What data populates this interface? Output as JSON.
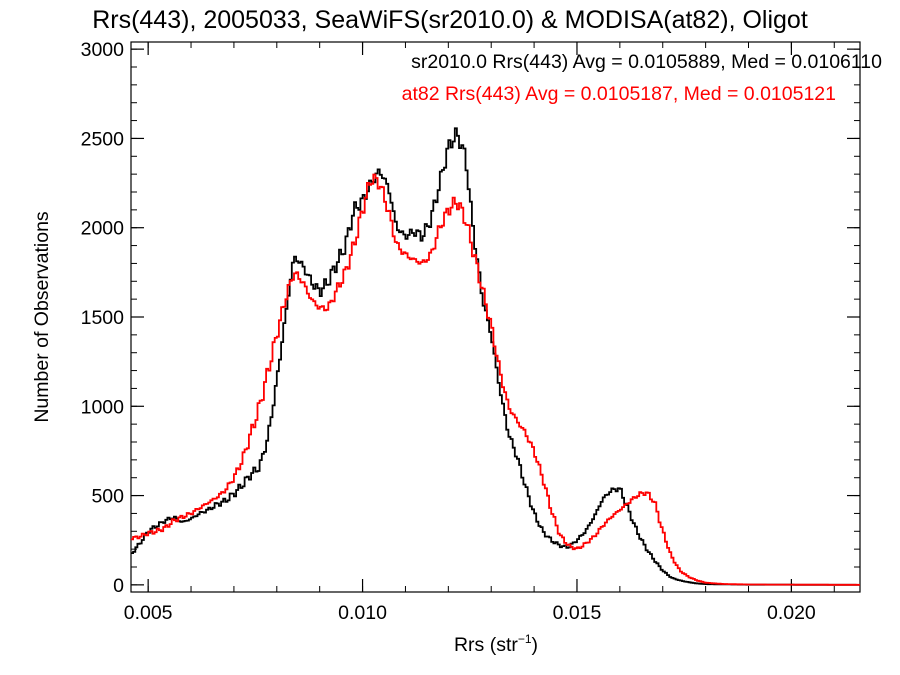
{
  "chart_data": {
    "type": "line",
    "title": "Rrs(443), 2005033, SeaWiFS(sr2010.0) & MODISA(at82), Oligot",
    "xlabel_main": "Rrs (str",
    "xlabel_sup": "−1",
    "xlabel_close": ")",
    "ylabel": "Number of Observations",
    "xlim": [
      0.0046,
      0.0216
    ],
    "ylim": [
      -40,
      3040
    ],
    "x_ticks": [
      0.005,
      0.01,
      0.015,
      0.02
    ],
    "x_tick_labels": [
      "0.005",
      "0.010",
      "0.015",
      "0.020"
    ],
    "y_ticks": [
      0,
      500,
      1000,
      1500,
      2000,
      2500,
      3000
    ],
    "y_tick_labels": [
      "0",
      "500",
      "1000",
      "1500",
      "2000",
      "2500",
      "3000"
    ],
    "x_minor_step": 0.001,
    "y_minor_step": 100,
    "grid": false,
    "legend_position": "top-right",
    "series": [
      {
        "label": "sr2010.0 Rrs(443) Avg = 0.0105889, Med = 0.0106110",
        "color": "#000000",
        "points": [
          [
            0.0046,
            170
          ],
          [
            0.0048,
            230
          ],
          [
            0.005,
            300
          ],
          [
            0.0052,
            330
          ],
          [
            0.0054,
            360
          ],
          [
            0.0056,
            380
          ],
          [
            0.0058,
            350
          ],
          [
            0.006,
            370
          ],
          [
            0.0062,
            400
          ],
          [
            0.0064,
            420
          ],
          [
            0.0066,
            450
          ],
          [
            0.0068,
            470
          ],
          [
            0.007,
            510
          ],
          [
            0.0072,
            560
          ],
          [
            0.0074,
            620
          ],
          [
            0.0076,
            660
          ],
          [
            0.0078,
            830
          ],
          [
            0.008,
            1140
          ],
          [
            0.0082,
            1500
          ],
          [
            0.0084,
            1840
          ],
          [
            0.0086,
            1790
          ],
          [
            0.0088,
            1700
          ],
          [
            0.009,
            1640
          ],
          [
            0.0092,
            1700
          ],
          [
            0.0094,
            1800
          ],
          [
            0.0096,
            1900
          ],
          [
            0.0098,
            2100
          ],
          [
            0.01,
            2150
          ],
          [
            0.0102,
            2250
          ],
          [
            0.0104,
            2320
          ],
          [
            0.0106,
            2230
          ],
          [
            0.0108,
            2000
          ],
          [
            0.011,
            1950
          ],
          [
            0.0112,
            1980
          ],
          [
            0.0114,
            1950
          ],
          [
            0.0116,
            2050
          ],
          [
            0.0118,
            2250
          ],
          [
            0.012,
            2450
          ],
          [
            0.0122,
            2530
          ],
          [
            0.0124,
            2400
          ],
          [
            0.0126,
            1950
          ],
          [
            0.0128,
            1600
          ],
          [
            0.013,
            1400
          ],
          [
            0.0132,
            1100
          ],
          [
            0.0134,
            850
          ],
          [
            0.0136,
            720
          ],
          [
            0.0138,
            550
          ],
          [
            0.014,
            400
          ],
          [
            0.0142,
            300
          ],
          [
            0.0144,
            250
          ],
          [
            0.0146,
            220
          ],
          [
            0.0148,
            210
          ],
          [
            0.015,
            250
          ],
          [
            0.0152,
            300
          ],
          [
            0.0154,
            380
          ],
          [
            0.0156,
            480
          ],
          [
            0.0158,
            530
          ],
          [
            0.016,
            540
          ],
          [
            0.0162,
            420
          ],
          [
            0.0164,
            300
          ],
          [
            0.0166,
            210
          ],
          [
            0.0168,
            140
          ],
          [
            0.017,
            80
          ],
          [
            0.0172,
            40
          ],
          [
            0.0174,
            25
          ],
          [
            0.0176,
            15
          ],
          [
            0.0178,
            8
          ],
          [
            0.018,
            4
          ],
          [
            0.019,
            1
          ],
          [
            0.0216,
            0
          ]
        ]
      },
      {
        "label": "at82 Rrs(443) Avg = 0.0105187, Med = 0.0105121",
        "color": "#ff0000",
        "points": [
          [
            0.0046,
            260
          ],
          [
            0.0048,
            270
          ],
          [
            0.005,
            290
          ],
          [
            0.0052,
            300
          ],
          [
            0.0054,
            320
          ],
          [
            0.0056,
            360
          ],
          [
            0.0058,
            380
          ],
          [
            0.006,
            400
          ],
          [
            0.0062,
            430
          ],
          [
            0.0064,
            460
          ],
          [
            0.0066,
            490
          ],
          [
            0.0068,
            530
          ],
          [
            0.007,
            600
          ],
          [
            0.0072,
            700
          ],
          [
            0.0074,
            850
          ],
          [
            0.0076,
            1000
          ],
          [
            0.0078,
            1200
          ],
          [
            0.008,
            1400
          ],
          [
            0.0082,
            1600
          ],
          [
            0.0084,
            1750
          ],
          [
            0.0086,
            1700
          ],
          [
            0.0088,
            1600
          ],
          [
            0.009,
            1550
          ],
          [
            0.0092,
            1550
          ],
          [
            0.0094,
            1650
          ],
          [
            0.0096,
            1750
          ],
          [
            0.0098,
            1900
          ],
          [
            0.01,
            2100
          ],
          [
            0.0102,
            2280
          ],
          [
            0.0104,
            2250
          ],
          [
            0.0106,
            2100
          ],
          [
            0.0108,
            1900
          ],
          [
            0.011,
            1850
          ],
          [
            0.0112,
            1820
          ],
          [
            0.0114,
            1800
          ],
          [
            0.0116,
            1850
          ],
          [
            0.0118,
            2000
          ],
          [
            0.012,
            2100
          ],
          [
            0.0122,
            2150
          ],
          [
            0.0124,
            2050
          ],
          [
            0.0126,
            1850
          ],
          [
            0.0128,
            1650
          ],
          [
            0.013,
            1450
          ],
          [
            0.0132,
            1200
          ],
          [
            0.0134,
            1000
          ],
          [
            0.0136,
            920
          ],
          [
            0.0138,
            850
          ],
          [
            0.014,
            750
          ],
          [
            0.0142,
            600
          ],
          [
            0.0144,
            420
          ],
          [
            0.0146,
            280
          ],
          [
            0.0148,
            220
          ],
          [
            0.015,
            200
          ],
          [
            0.0152,
            230
          ],
          [
            0.0154,
            270
          ],
          [
            0.0156,
            330
          ],
          [
            0.0158,
            380
          ],
          [
            0.016,
            420
          ],
          [
            0.0162,
            460
          ],
          [
            0.0164,
            500
          ],
          [
            0.0166,
            520
          ],
          [
            0.0168,
            470
          ],
          [
            0.017,
            300
          ],
          [
            0.0172,
            160
          ],
          [
            0.0174,
            80
          ],
          [
            0.0176,
            45
          ],
          [
            0.0178,
            25
          ],
          [
            0.018,
            12
          ],
          [
            0.0184,
            5
          ],
          [
            0.019,
            2
          ],
          [
            0.0216,
            0
          ]
        ]
      }
    ]
  }
}
